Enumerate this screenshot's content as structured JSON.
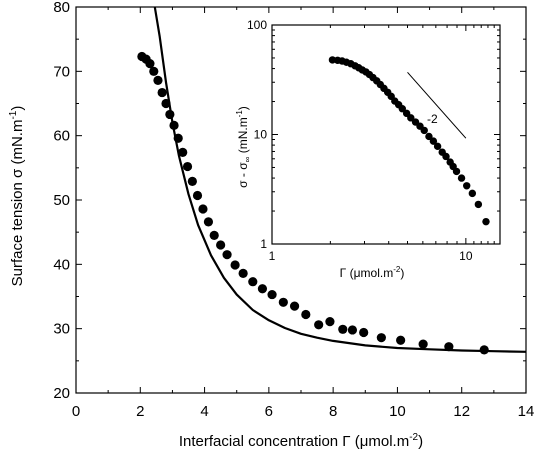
{
  "chart_data": [
    {
      "type": "scatter",
      "xlabel": "Interfacial concentration Γ (μmol.m",
      "xlabel_sup": "-2",
      "xlabel_end": ")",
      "ylabel": "Surface tension σ (mN.m",
      "ylabel_sup": "-1",
      "ylabel_end": ")",
      "xlim": [
        0,
        14
      ],
      "ylim": [
        20,
        80
      ],
      "xticks": [
        "0",
        "2",
        "4",
        "6",
        "8",
        "10",
        "12",
        "14"
      ],
      "yticks": [
        "20",
        "30",
        "40",
        "50",
        "60",
        "70",
        "80"
      ],
      "series": [
        {
          "marker": "filled-circle",
          "x": [
            2.05,
            2.18,
            2.3,
            2.42,
            2.55,
            2.68,
            2.8,
            2.92,
            3.05,
            3.18,
            3.32,
            3.47,
            3.62,
            3.78,
            3.95,
            4.12,
            4.3,
            4.5,
            4.7,
            4.95,
            5.2,
            5.5,
            5.8,
            6.1,
            6.45,
            6.8,
            7.15,
            7.55,
            7.9,
            8.3,
            8.6,
            8.95,
            9.5,
            10.1,
            10.8,
            11.6,
            12.7
          ],
          "y": [
            72.3,
            71.9,
            71.2,
            70.0,
            68.6,
            66.7,
            65.0,
            63.3,
            61.6,
            59.6,
            57.4,
            55.2,
            52.9,
            50.7,
            48.6,
            46.6,
            44.5,
            43.0,
            41.5,
            39.9,
            38.6,
            37.3,
            36.2,
            35.3,
            34.1,
            33.5,
            32.2,
            30.6,
            31.1,
            29.9,
            29.8,
            29.4,
            28.6,
            28.2,
            27.6,
            27.2,
            26.7
          ]
        },
        {
          "style": "solid-line",
          "x": [
            2.45,
            2.6,
            2.8,
            3.0,
            3.2,
            3.5,
            3.8,
            4.2,
            4.6,
            5.0,
            5.5,
            6.0,
            6.5,
            7.0,
            7.5,
            8.0,
            9.0,
            10.0,
            11.0,
            12.0,
            13.0,
            14.0
          ],
          "y": [
            80.0,
            75.5,
            68.3,
            62.1,
            56.9,
            50.9,
            46.1,
            41.4,
            37.9,
            35.3,
            32.9,
            31.3,
            30.1,
            29.2,
            28.6,
            28.1,
            27.4,
            27.0,
            26.8,
            26.6,
            26.5,
            26.4
          ]
        }
      ]
    },
    {
      "type": "scatter",
      "scale": "log-log",
      "xlabel": "Γ (μmol.m",
      "xlabel_sup": "-2",
      "xlabel_end": ")",
      "ylabel": "σ - σ",
      "ylabel_sub": "∞",
      "ylabel_end": " (mN.m",
      "ylabel_sup": "-1",
      "ylabel_close": ")",
      "xlim": [
        1,
        15
      ],
      "ylim": [
        1,
        100
      ],
      "xticks": [
        "1",
        "10"
      ],
      "yticks": [
        "1",
        "10",
        "100"
      ],
      "annotation": "-2",
      "reference_line": {
        "x": [
          5.0,
          10.0
        ],
        "y": [
          37.0,
          9.25
        ],
        "slope": -2
      },
      "series": [
        {
          "marker": "filled-circle",
          "x": [
            2.05,
            2.18,
            2.3,
            2.42,
            2.55,
            2.68,
            2.8,
            2.92,
            3.05,
            3.18,
            3.32,
            3.47,
            3.62,
            3.78,
            3.95,
            4.12,
            4.3,
            4.5,
            4.7,
            4.95,
            5.2,
            5.5,
            5.8,
            6.1,
            6.45,
            6.8,
            7.15,
            7.55,
            7.9,
            8.3,
            8.6,
            8.95,
            9.5,
            10.1,
            10.8,
            11.6,
            12.7
          ],
          "y": [
            48.0,
            47.6,
            46.9,
            45.7,
            44.3,
            42.4,
            40.7,
            38.9,
            37.3,
            35.3,
            33.1,
            30.9,
            28.6,
            26.4,
            24.3,
            22.3,
            20.2,
            18.7,
            17.2,
            15.6,
            14.2,
            13.0,
            11.9,
            10.9,
            9.6,
            8.7,
            7.8,
            6.9,
            6.3,
            5.6,
            5.1,
            4.6,
            4.0,
            3.4,
            2.9,
            2.3,
            1.6
          ]
        }
      ]
    }
  ]
}
